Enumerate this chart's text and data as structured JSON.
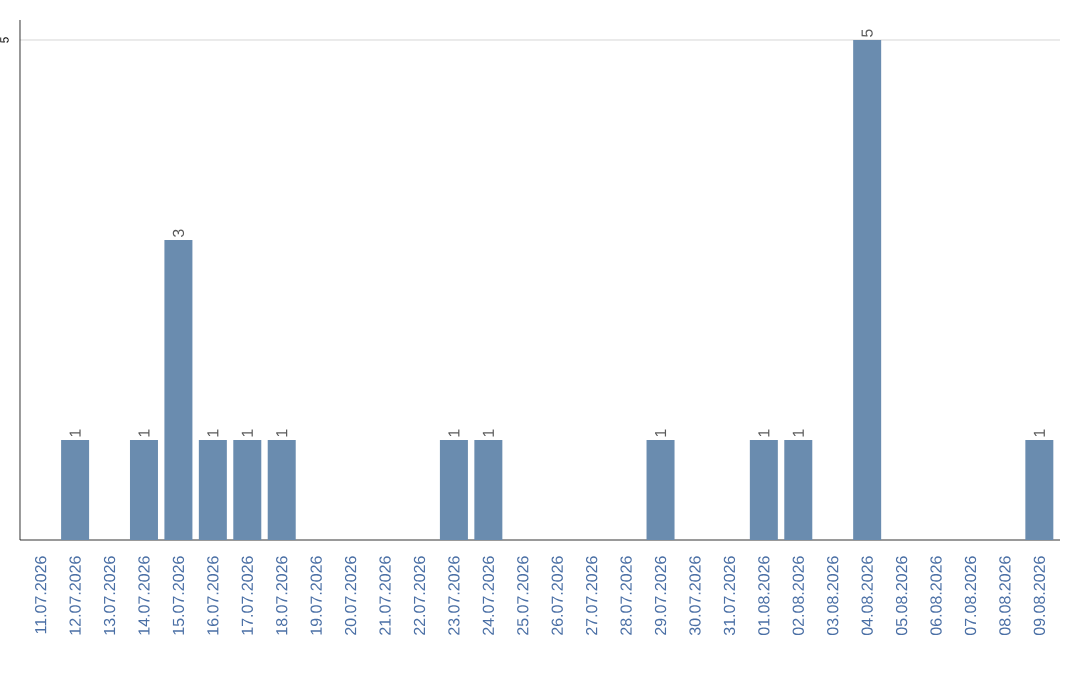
{
  "chart_data": {
    "type": "bar",
    "categories": [
      "11.07.2026",
      "12.07.2026",
      "13.07.2026",
      "14.07.2026",
      "15.07.2026",
      "16.07.2026",
      "17.07.2026",
      "18.07.2026",
      "19.07.2026",
      "20.07.2026",
      "21.07.2026",
      "22.07.2026",
      "23.07.2026",
      "24.07.2026",
      "25.07.2026",
      "26.07.2026",
      "27.07.2026",
      "28.07.2026",
      "29.07.2026",
      "30.07.2026",
      "31.07.2026",
      "01.08.2026",
      "02.08.2026",
      "03.08.2026",
      "04.08.2026",
      "05.08.2026",
      "06.08.2026",
      "07.08.2026",
      "08.08.2026",
      "09.08.2026"
    ],
    "values": [
      0,
      1,
      0,
      1,
      3,
      1,
      1,
      1,
      0,
      0,
      0,
      0,
      1,
      1,
      0,
      0,
      0,
      0,
      1,
      0,
      0,
      1,
      1,
      0,
      5,
      0,
      0,
      0,
      0,
      1
    ],
    "value_labels": [
      null,
      "1",
      null,
      "1",
      "3",
      "1",
      "1",
      "1",
      null,
      null,
      null,
      null,
      "1",
      "1",
      null,
      null,
      null,
      null,
      "1",
      null,
      null,
      "1",
      "1",
      null,
      "5",
      null,
      null,
      null,
      null,
      "1"
    ],
    "color": "#6a8caf",
    "ylim": [
      0,
      5.2
    ],
    "yticks": [
      5
    ],
    "grid": "y"
  }
}
